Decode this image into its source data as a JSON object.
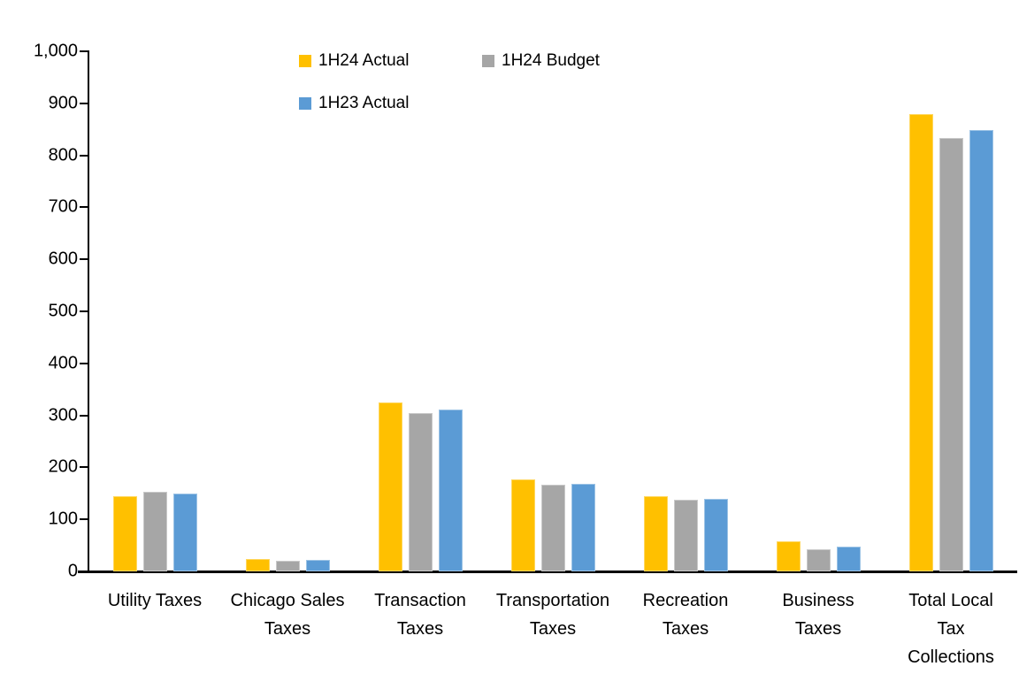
{
  "chart_data": {
    "type": "bar",
    "title": "",
    "categories": [
      "Utility Taxes",
      "Chicago Sales Taxes",
      "Transaction Taxes",
      "Transportation Taxes",
      "Recreation Taxes",
      "Business Taxes",
      "Total Local Tax Collections"
    ],
    "category_lines": [
      [
        "Utility Taxes"
      ],
      [
        "Chicago Sales",
        "Taxes"
      ],
      [
        "Transaction",
        "Taxes"
      ],
      [
        "Transportation",
        "Taxes"
      ],
      [
        "Recreation",
        "Taxes"
      ],
      [
        "Business",
        "Taxes"
      ],
      [
        "Total Local",
        "Tax",
        "Collections"
      ]
    ],
    "series": [
      {
        "name": "1H24 Actual",
        "color": "#FFC000",
        "border_color": "#FFD75E",
        "values": [
          144,
          24,
          325,
          177,
          145,
          58,
          880
        ]
      },
      {
        "name": "1H24 Budget",
        "color": "#A6A6A6",
        "border_color": "#C9C9C9",
        "values": [
          153,
          20,
          305,
          166,
          138,
          43,
          833
        ]
      },
      {
        "name": "1H23 Actual",
        "color": "#5B9BD5",
        "border_color": "#9CC3E5",
        "values": [
          150,
          22,
          312,
          168,
          140,
          48,
          848
        ]
      }
    ],
    "xlabel": "",
    "ylabel": "",
    "ylim": [
      0,
      1000
    ],
    "ytick_step": 100,
    "ytick_labels": [
      "0",
      "100",
      "200",
      "300",
      "400",
      "500",
      "600",
      "700",
      "800",
      "900",
      "1,000"
    ],
    "grid": false,
    "legend_position": "top-inside",
    "axis_color": "#000000",
    "text_color": "#000000"
  }
}
